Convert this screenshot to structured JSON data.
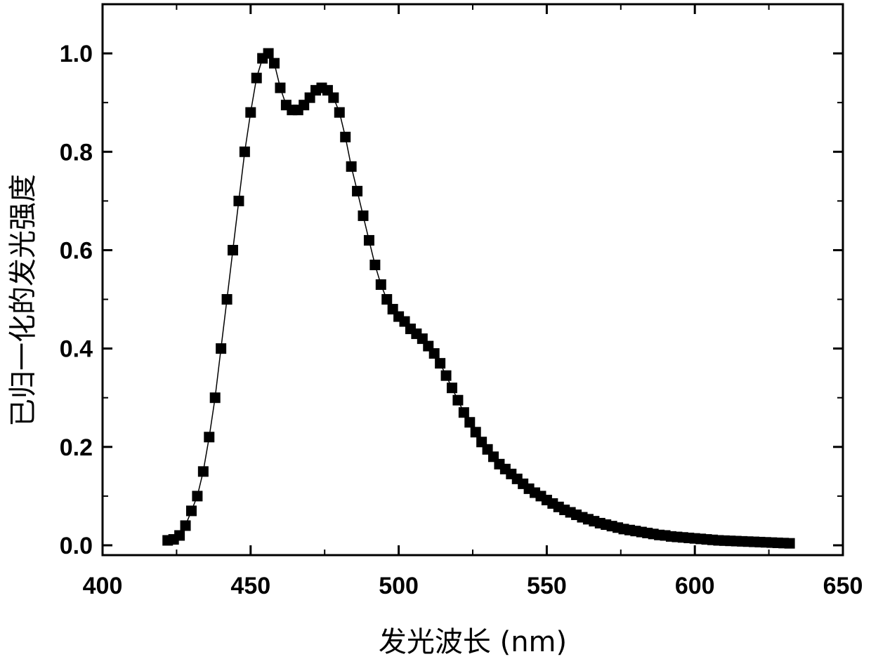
{
  "chart_data": {
    "type": "scatter",
    "title": "",
    "xlabel": "发光波长 (nm)",
    "ylabel": "已归一化的发光强度",
    "xlim": [
      400,
      650
    ],
    "ylim": [
      -0.02,
      1.1
    ],
    "xticks": [
      400,
      450,
      500,
      550,
      600,
      650
    ],
    "yticks": [
      0.0,
      0.2,
      0.4,
      0.6,
      0.8,
      1.0
    ],
    "xtick_labels": [
      "400",
      "450",
      "500",
      "550",
      "600",
      "650"
    ],
    "ytick_labels": [
      "0.0",
      "0.2",
      "0.4",
      "0.6",
      "0.8",
      "1.0"
    ],
    "grid": false,
    "marker": "square",
    "connected_line": true,
    "color": "#000000",
    "series": [
      {
        "x": [
          422,
          424,
          426,
          428,
          430,
          432,
          434,
          436,
          438,
          440,
          442,
          444,
          446,
          448,
          450,
          452,
          454,
          456,
          458,
          460,
          462,
          464,
          466,
          468,
          470,
          472,
          474,
          476,
          478,
          480,
          482,
          484,
          486,
          488,
          490,
          492,
          494,
          496,
          498,
          500,
          502,
          504,
          506,
          508,
          510,
          512,
          514,
          516,
          518,
          520,
          522,
          524,
          526,
          528,
          530,
          532,
          534,
          536,
          538,
          540,
          542,
          544,
          546,
          548,
          550,
          552,
          554,
          556,
          558,
          560,
          562,
          564,
          566,
          568,
          570,
          572,
          574,
          576,
          578,
          580,
          582,
          584,
          586,
          588,
          590,
          592,
          594,
          596,
          598,
          600,
          602,
          604,
          606,
          608,
          610,
          612,
          614,
          616,
          618,
          620,
          622,
          624,
          626,
          628,
          630,
          632
        ],
        "y": [
          0.01,
          0.012,
          0.02,
          0.04,
          0.07,
          0.1,
          0.15,
          0.22,
          0.3,
          0.4,
          0.5,
          0.6,
          0.7,
          0.8,
          0.88,
          0.95,
          0.99,
          1.0,
          0.98,
          0.93,
          0.895,
          0.885,
          0.885,
          0.895,
          0.91,
          0.925,
          0.93,
          0.925,
          0.91,
          0.88,
          0.83,
          0.77,
          0.72,
          0.67,
          0.62,
          0.57,
          0.53,
          0.5,
          0.48,
          0.465,
          0.455,
          0.44,
          0.43,
          0.42,
          0.405,
          0.39,
          0.37,
          0.345,
          0.32,
          0.295,
          0.27,
          0.25,
          0.23,
          0.21,
          0.195,
          0.18,
          0.165,
          0.155,
          0.145,
          0.135,
          0.125,
          0.115,
          0.107,
          0.1,
          0.092,
          0.085,
          0.078,
          0.072,
          0.067,
          0.062,
          0.057,
          0.053,
          0.049,
          0.045,
          0.042,
          0.039,
          0.036,
          0.033,
          0.031,
          0.029,
          0.027,
          0.025,
          0.023,
          0.021,
          0.02,
          0.018,
          0.017,
          0.016,
          0.015,
          0.014,
          0.013,
          0.012,
          0.011,
          0.01,
          0.0095,
          0.009,
          0.0085,
          0.008,
          0.0075,
          0.007,
          0.0065,
          0.006,
          0.0055,
          0.005,
          0.0045,
          0.004
        ]
      }
    ]
  }
}
